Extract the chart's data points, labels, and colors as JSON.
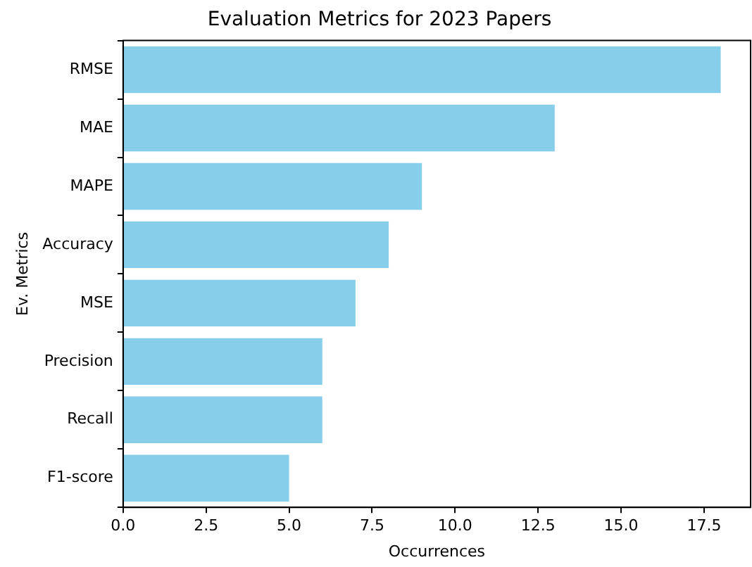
{
  "chart_data": {
    "type": "bar",
    "orientation": "horizontal",
    "title": "Evaluation Metrics for 2023 Papers",
    "xlabel": "Occurrences",
    "ylabel": "Ev. Metrics",
    "categories": [
      "RMSE",
      "MAE",
      "MAPE",
      "Accuracy",
      "MSE",
      "Precision",
      "Recall",
      "F1-score"
    ],
    "values": [
      18,
      13,
      9,
      8,
      7,
      6,
      6,
      5
    ],
    "color": "#87ceeb",
    "xlim": [
      0,
      18.9
    ],
    "xticks": [
      {
        "value": 0,
        "label": "0.0"
      },
      {
        "value": 2.5,
        "label": "2.5"
      },
      {
        "value": 5,
        "label": "5.0"
      },
      {
        "value": 7.5,
        "label": "7.5"
      },
      {
        "value": 10,
        "label": "10.0"
      },
      {
        "value": 12.5,
        "label": "12.5"
      },
      {
        "value": 15,
        "label": "15.0"
      },
      {
        "value": 17.5,
        "label": "17.5"
      }
    ],
    "grid": false,
    "legend": false
  }
}
